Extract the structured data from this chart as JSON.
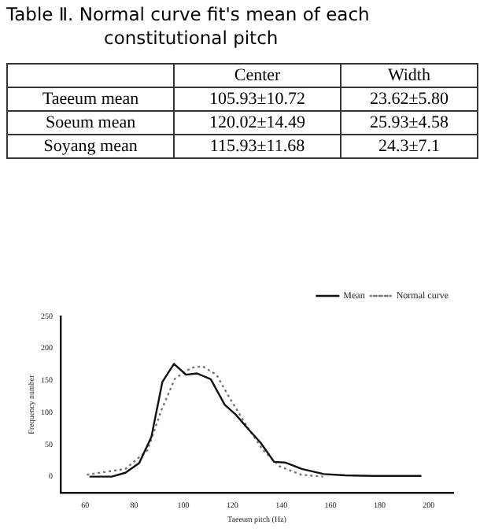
{
  "chart_data": [
    {
      "type": "other",
      "title": "Table Ⅱ. Normal curve fit's mean of each constitutional pitch",
      "annotations": [
        "Center",
        "Width",
        "Taeeum mean",
        "105.93±10.72",
        "23.62±5.80",
        "Soeum mean",
        "120.02±14.49",
        "25.93±4.58",
        "Soyang mean",
        "115.93±11.68",
        "24.3±7.1"
      ]
    },
    {
      "type": "line",
      "xlabel": "Taeeum pitch (Hz)",
      "ylabel": "Frequency number",
      "xlim": [
        50,
        210
      ],
      "xticks": [
        60,
        80,
        100,
        120,
        140,
        160,
        180,
        200
      ],
      "ylim": [
        -25,
        250
      ],
      "yticks": [
        0,
        50,
        100,
        150,
        200,
        250
      ],
      "grid": false,
      "legend": "top right",
      "marker": "none",
      "series": [
        {
          "name": "Mean",
          "color": "#111111",
          "line_style": "solid",
          "x": [
            61.8,
            70.8,
            76.4,
            82,
            87,
            91.5,
            96.2,
            101.1,
            105.6,
            111.2,
            116.9,
            121.3,
            127,
            131.5,
            137,
            141.5,
            148.3,
            157.3,
            166,
            177.5,
            197
          ],
          "values": [
            0,
            0,
            6,
            21,
            62,
            148,
            176,
            159,
            161,
            152,
            112,
            97,
            72,
            53,
            23,
            22,
            12,
            4,
            2,
            1,
            1
          ]
        },
        {
          "name": "Normal curve",
          "color": "#777777",
          "line_style": "dotted",
          "x": [
            60.7,
            76.4,
            85.4,
            91,
            96.6,
            103.4,
            107.9,
            113.5,
            119,
            126,
            132.6,
            139.3,
            148,
            157
          ],
          "values": [
            3,
            12,
            41,
            103,
            153,
            170,
            172,
            159,
            122,
            78,
            41,
            16,
            3,
            0
          ]
        }
      ]
    }
  ]
}
